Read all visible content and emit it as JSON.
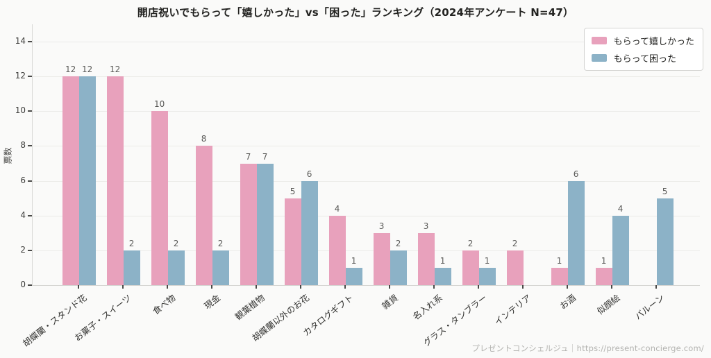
{
  "title": "開店祝いでもらって「嬉しかった」vs「困った」ランキング（2024年アンケート N=47）",
  "footer": "プレゼントコンシェルジュ｜https://present-concierge.com/",
  "colors": {
    "happy": "#e8a1bc",
    "trouble": "#8cb2c7",
    "background": "#fafaf9",
    "grid": "#ebebe8",
    "axis": "#d6d6d3",
    "tick_text": "#3d3d3b",
    "value_label": "#595957",
    "legend_bg": "#ffffff",
    "legend_border": "#d4d4d2",
    "footer_text": "#b3b3b0"
  },
  "chart_data": {
    "type": "bar",
    "title": "開店祝いでもらって「嬉しかった」vs「困った」ランキング（2024年アンケート N=47）",
    "xlabel": "",
    "ylabel": "票数",
    "ylim": [
      0,
      15
    ],
    "yticks": [
      0,
      2,
      4,
      6,
      8,
      10,
      12,
      14
    ],
    "grid": true,
    "legend_position": "upper right",
    "categories": [
      "胡蝶蘭・スタンド花",
      "お菓子・スイーツ",
      "食べ物",
      "現金",
      "観葉植物",
      "胡蝶蘭以外のお花",
      "カタログギフト",
      "雑貨",
      "名入れ系",
      "グラス・タンブラー",
      "インテリア",
      "お酒",
      "似顔絵",
      "バルーン"
    ],
    "series": [
      {
        "name": "もらって嬉しかった",
        "color": "#e8a1bc",
        "values": [
          12,
          12,
          10,
          8,
          7,
          5,
          4,
          3,
          3,
          2,
          2,
          1,
          1,
          0
        ]
      },
      {
        "name": "もらって困った",
        "color": "#8cb2c7",
        "values": [
          12,
          2,
          2,
          2,
          7,
          6,
          1,
          2,
          1,
          1,
          0,
          6,
          4,
          5
        ]
      }
    ]
  }
}
